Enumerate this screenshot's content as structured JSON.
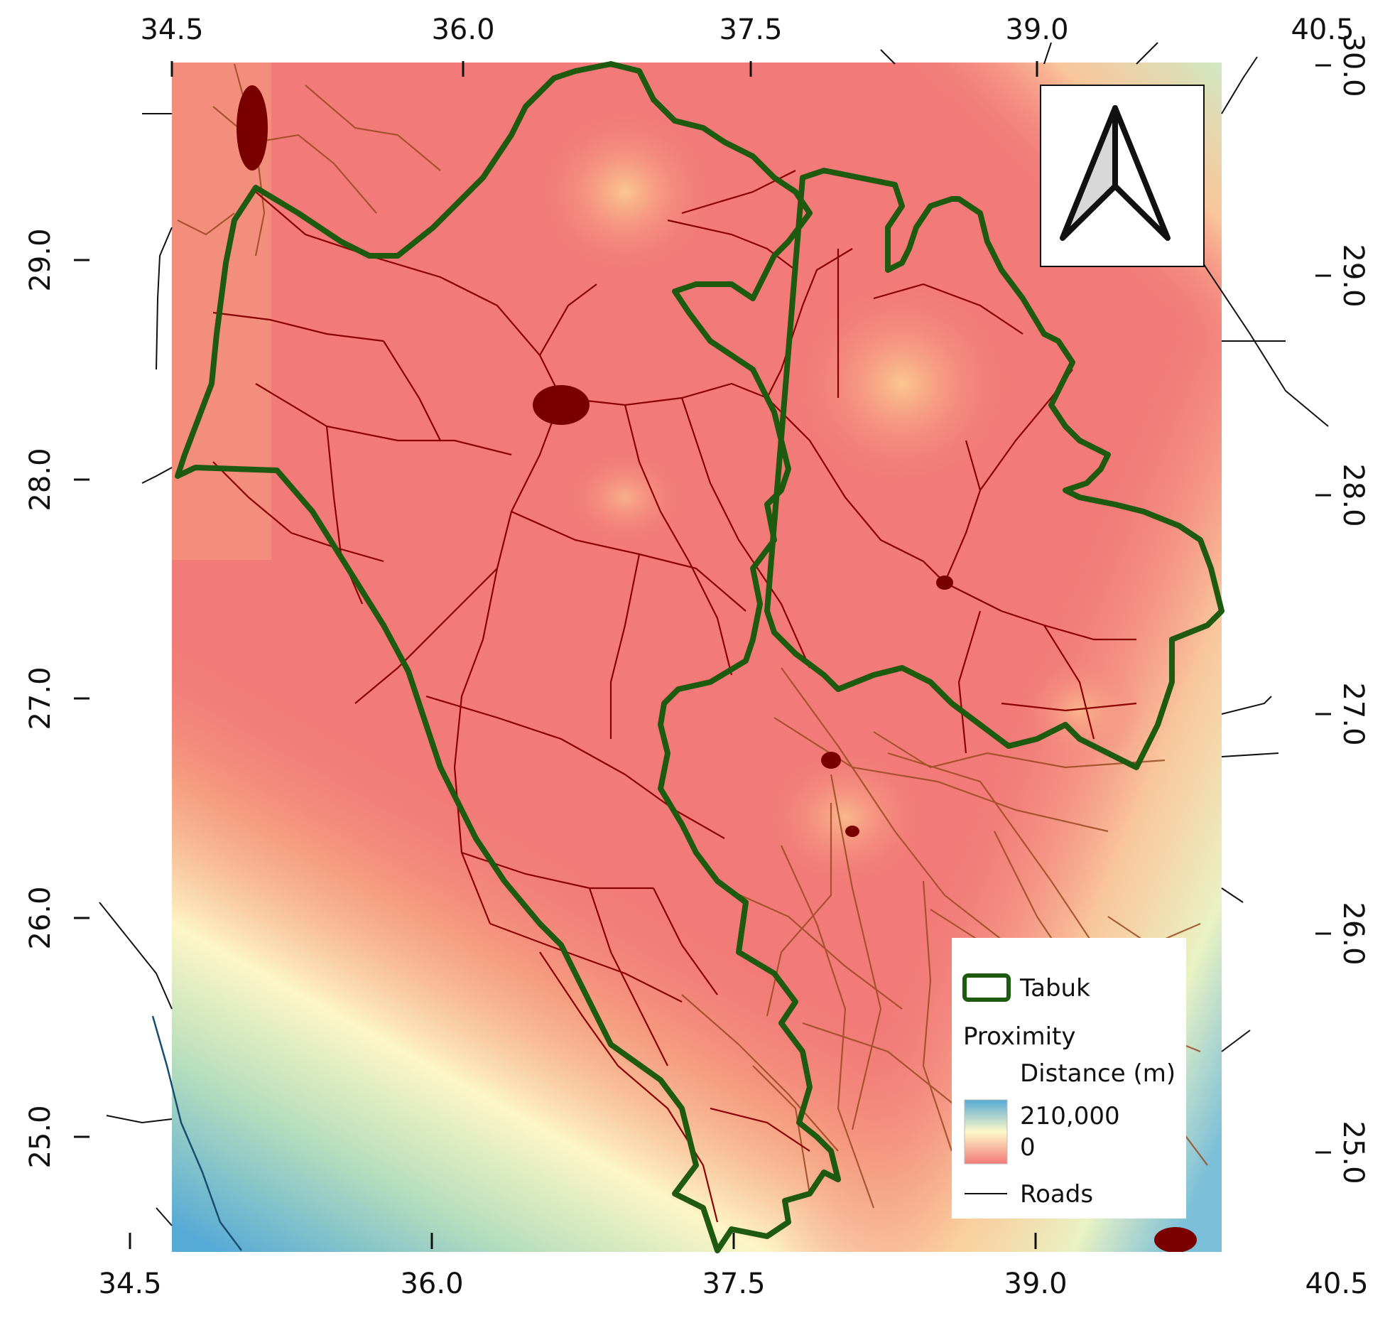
{
  "map": {
    "top_axis_labels": [
      "34.5",
      "36.0",
      "37.5",
      "39.0",
      "40.5"
    ],
    "bottom_axis_labels": [
      "34.5",
      "36.0",
      "37.5",
      "39.0",
      "40.5"
    ],
    "left_axis_labels": [
      "29.0",
      "28.0",
      "27.0",
      "26.0",
      "25.0"
    ],
    "right_axis_labels": [
      "30.0",
      "29.0",
      "28.0",
      "27.0",
      "26.0",
      "25.0"
    ],
    "north_arrow_icon": "north-arrow-icon",
    "colors": {
      "boundary": "#1e5a10",
      "road_inside": "#8b0000",
      "road_outside": "#9a4a20",
      "road_offmap": "#111111",
      "ramp_low": "#f27a78",
      "ramp_mid": "#fdf8c8",
      "ramp_high": "#56aad6"
    }
  },
  "legend": {
    "tabuk_label": "Tabuk",
    "proximity_label": "Proximity",
    "distance_label": "Distance (m)",
    "max_value": "210,000",
    "min_value": "0",
    "roads_label": "Roads"
  }
}
